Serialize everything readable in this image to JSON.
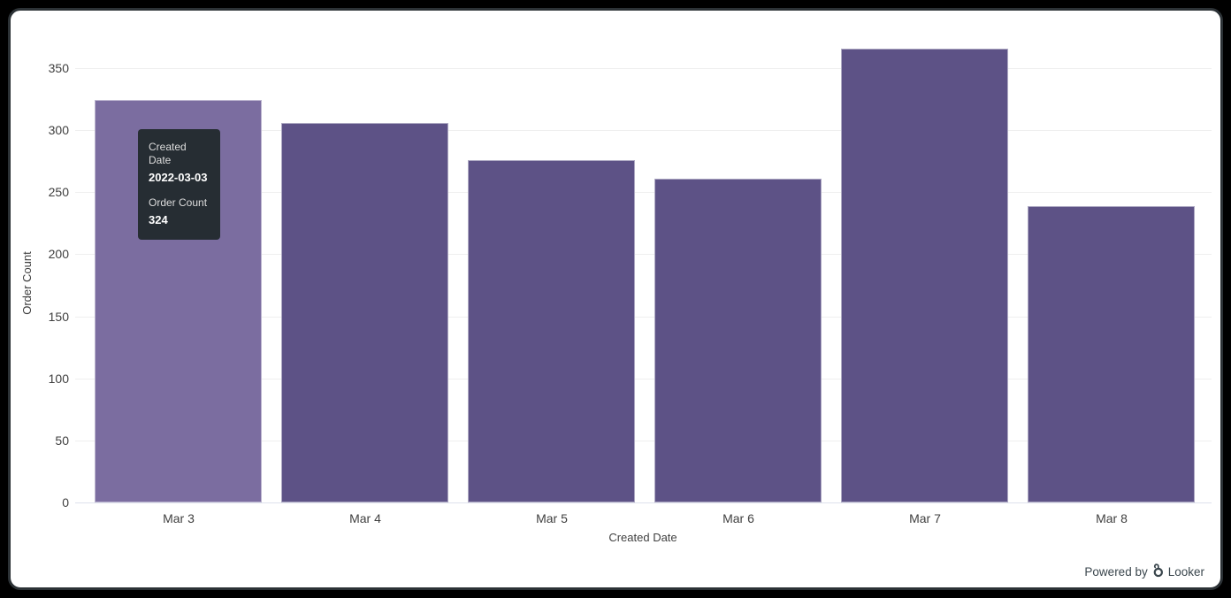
{
  "chart_data": {
    "type": "bar",
    "categories": [
      "Mar 3",
      "Mar 4",
      "Mar 5",
      "Mar 6",
      "Mar 7",
      "Mar 8"
    ],
    "values": [
      324,
      306,
      276,
      261,
      366,
      239
    ],
    "title": "",
    "xlabel": "Created Date",
    "ylabel": "Order Count",
    "y_ticks": [
      0,
      50,
      100,
      150,
      200,
      250,
      300,
      350
    ],
    "ylim": [
      0,
      370
    ],
    "grid": true,
    "legend": "none",
    "bar_color": "#5d5286",
    "bar_hover_color": "#7b6da0",
    "hovered_index": 0
  },
  "tooltip": {
    "dimension_label": "Created Date",
    "dimension_value": "2022-03-03",
    "measure_label": "Order Count",
    "measure_value": "324",
    "bg_color": "#262d33"
  },
  "branding": {
    "powered_by": "Powered by",
    "brand": "Looker"
  },
  "colors": {
    "frame_background": "#000000",
    "card_background": "#ffffff",
    "gridline": "#efefef",
    "axis_line": "#dde1ec",
    "axis_text": "#3f3f3f",
    "branding_text": "#3a464d"
  }
}
